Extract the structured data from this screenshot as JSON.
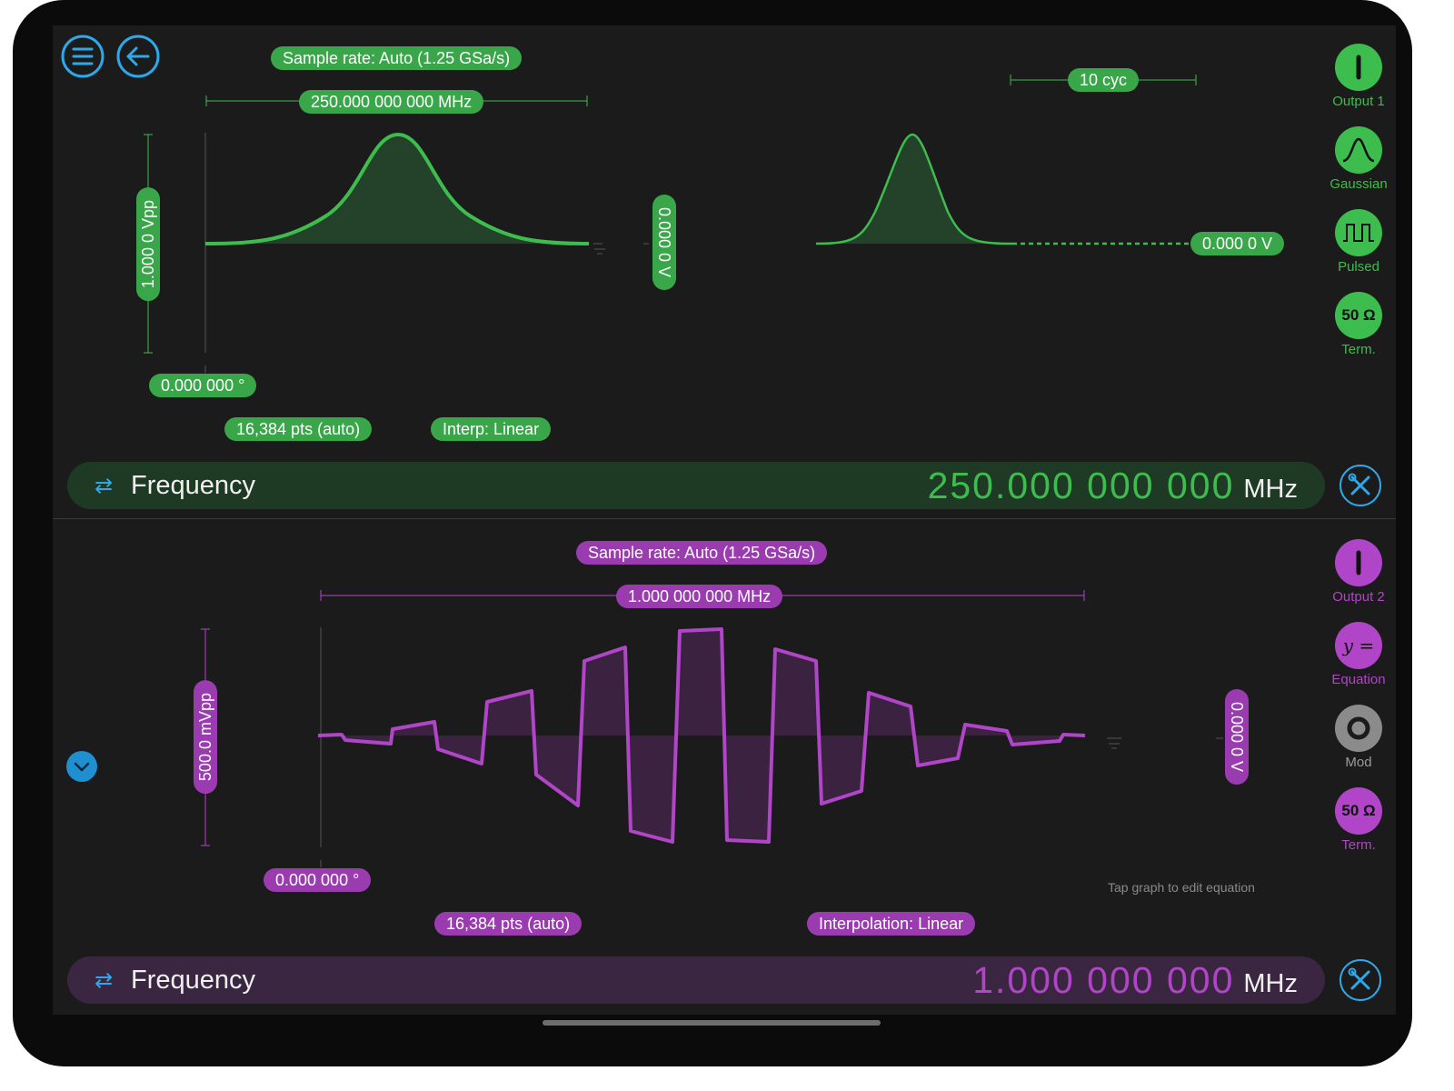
{
  "colors": {
    "ch1": "#3dbd4e",
    "ch2": "#b045c8",
    "accent": "#2ea8e8"
  },
  "ch1": {
    "sample_rate": "Sample rate: Auto (1.25 GSa/s)",
    "freq_pill": "250.000 000 000 MHz",
    "cycles": "10 cyc",
    "amplitude": "1.000 0 Vpp",
    "offset": "0.000 0 V",
    "level": "0.000 0 V",
    "phase": "0.000 000 °",
    "points": "16,384 pts (auto)",
    "interp": "Interp: Linear",
    "bar": {
      "label": "Frequency",
      "value": "250.000 000 000",
      "unit": "MHz"
    },
    "side": [
      {
        "label": "Output 1",
        "icon": "power-icon"
      },
      {
        "label": "Gaussian",
        "icon": "gaussian-wave-icon"
      },
      {
        "label": "Pulsed",
        "icon": "pulse-train-icon"
      },
      {
        "label": "Term.",
        "text": "50 Ω"
      }
    ]
  },
  "ch2": {
    "sample_rate": "Sample rate: Auto (1.25 GSa/s)",
    "freq_pill": "1.000 000 000 MHz",
    "amplitude": "500.0 mVpp",
    "offset": "0.000 0 V",
    "phase": "0.000 000 °",
    "points": "16,384 pts (auto)",
    "interp": "Interpolation: Linear",
    "hint": "Tap graph to edit equation",
    "bar": {
      "label": "Frequency",
      "value": "1.000 000 000",
      "unit": "MHz"
    },
    "side": [
      {
        "label": "Output 2",
        "icon": "power-icon"
      },
      {
        "label": "Equation",
        "text": "y ="
      },
      {
        "label": "Mod",
        "icon": "mod-ring-icon"
      },
      {
        "label": "Term.",
        "text": "50 Ω"
      }
    ]
  }
}
